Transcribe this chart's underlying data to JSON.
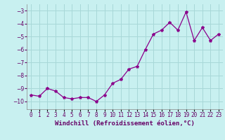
{
  "x": [
    0,
    1,
    2,
    3,
    4,
    5,
    6,
    7,
    8,
    9,
    10,
    11,
    12,
    13,
    14,
    15,
    16,
    17,
    18,
    19,
    20,
    21,
    22,
    23
  ],
  "y": [
    -9.5,
    -9.6,
    -9.0,
    -9.2,
    -9.7,
    -9.8,
    -9.7,
    -9.7,
    -10.0,
    -9.5,
    -8.6,
    -8.3,
    -7.5,
    -7.3,
    -6.0,
    -4.8,
    -4.5,
    -3.9,
    -4.5,
    -3.1,
    -5.3,
    -4.3,
    -5.3,
    -4.8
  ],
  "line_color": "#8B008B",
  "marker": "*",
  "marker_size": 3,
  "bg_color": "#c8f0f0",
  "grid_color": "#a8d8d8",
  "xlabel": "Windchill (Refroidissement éolien,°C)",
  "xlabel_fontsize": 6.5,
  "tick_fontsize": 5.5,
  "ylim": [
    -10.6,
    -2.5
  ],
  "yticks": [
    -3,
    -4,
    -5,
    -6,
    -7,
    -8,
    -9,
    -10
  ],
  "xlim": [
    -0.5,
    23.5
  ],
  "label_color": "#660066"
}
